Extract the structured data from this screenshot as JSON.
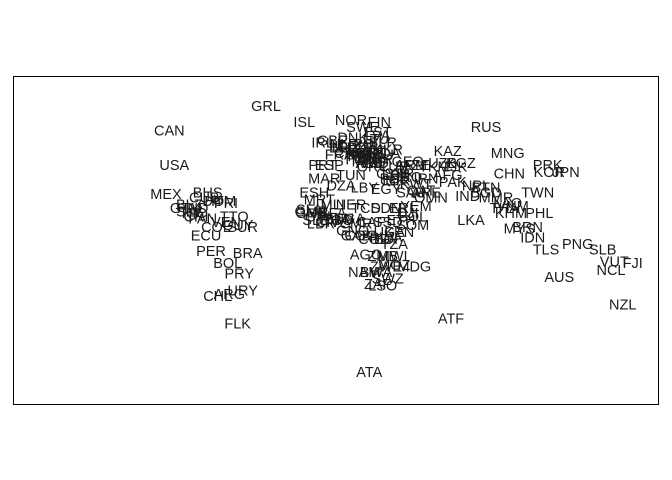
{
  "chart_data": {
    "type": "scatter",
    "title": "",
    "xlabel": "",
    "ylabel": "",
    "axes_visible": false,
    "grid": false,
    "legend": "none",
    "xlim": [
      -180,
      180
    ],
    "ylim": [
      -90,
      84
    ],
    "text_color": "#1a1a1a",
    "points": [
      {
        "label": "CAN",
        "x": -100,
        "y": 60
      },
      {
        "label": "USA",
        "x": -97,
        "y": 40
      },
      {
        "label": "MEX",
        "x": -102,
        "y": 23
      },
      {
        "label": "BHS",
        "x": -77,
        "y": 24
      },
      {
        "label": "CUB",
        "x": -79,
        "y": 21
      },
      {
        "label": "HTI",
        "x": -72,
        "y": 19
      },
      {
        "label": "DOM",
        "x": -70,
        "y": 19
      },
      {
        "label": "PRI",
        "x": -66,
        "y": 18
      },
      {
        "label": "GTM",
        "x": -90,
        "y": 15
      },
      {
        "label": "BLZ",
        "x": -88,
        "y": 17
      },
      {
        "label": "HND",
        "x": -86,
        "y": 15
      },
      {
        "label": "SLV",
        "x": -88,
        "y": 13
      },
      {
        "label": "NIC",
        "x": -85,
        "y": 12
      },
      {
        "label": "CRI",
        "x": -84,
        "y": 10
      },
      {
        "label": "PAN",
        "x": -80,
        "y": 9
      },
      {
        "label": "TTO",
        "x": -61,
        "y": 10
      },
      {
        "label": "VEN",
        "x": -66,
        "y": 7
      },
      {
        "label": "GUY",
        "x": -59,
        "y": 5
      },
      {
        "label": "SUR",
        "x": -56,
        "y": 4
      },
      {
        "label": "COL",
        "x": -72,
        "y": 4
      },
      {
        "label": "ECU",
        "x": -78,
        "y": -1
      },
      {
        "label": "PER",
        "x": -75,
        "y": -10
      },
      {
        "label": "BRA",
        "x": -53,
        "y": -11
      },
      {
        "label": "BOL",
        "x": -65,
        "y": -17
      },
      {
        "label": "PRY",
        "x": -58,
        "y": -23
      },
      {
        "label": "URY",
        "x": -56,
        "y": -33
      },
      {
        "label": "ARG",
        "x": -64,
        "y": -35
      },
      {
        "label": "CHL",
        "x": -71,
        "y": -36
      },
      {
        "label": "FLK",
        "x": -59,
        "y": -52
      },
      {
        "label": "GRL",
        "x": -42,
        "y": 74
      },
      {
        "label": "ISL",
        "x": -19,
        "y": 65
      },
      {
        "label": "NOR",
        "x": 9,
        "y": 66
      },
      {
        "label": "FIN",
        "x": 26,
        "y": 65
      },
      {
        "label": "SWE",
        "x": 16,
        "y": 62
      },
      {
        "label": "EST",
        "x": 25,
        "y": 59
      },
      {
        "label": "LVA",
        "x": 25,
        "y": 57
      },
      {
        "label": "LTU",
        "x": 24,
        "y": 55
      },
      {
        "label": "DNK",
        "x": 10,
        "y": 56
      },
      {
        "label": "IRL",
        "x": -8,
        "y": 53
      },
      {
        "label": "GBR",
        "x": -2,
        "y": 54
      },
      {
        "label": "NLD",
        "x": 5,
        "y": 52
      },
      {
        "label": "BEL",
        "x": 4,
        "y": 50
      },
      {
        "label": "LUX",
        "x": 6,
        "y": 50
      },
      {
        "label": "DEU",
        "x": 10,
        "y": 51
      },
      {
        "label": "POL",
        "x": 19,
        "y": 52
      },
      {
        "label": "BLR",
        "x": 28,
        "y": 53
      },
      {
        "label": "UKR",
        "x": 31,
        "y": 49
      },
      {
        "label": "CZE",
        "x": 15,
        "y": 50
      },
      {
        "label": "AUT",
        "x": 14,
        "y": 47
      },
      {
        "label": "CHE",
        "x": 8,
        "y": 47
      },
      {
        "label": "FRA",
        "x": 2,
        "y": 46
      },
      {
        "label": "SVK",
        "x": 19,
        "y": 49
      },
      {
        "label": "HUN",
        "x": 19,
        "y": 47
      },
      {
        "label": "SVN",
        "x": 15,
        "y": 46
      },
      {
        "label": "HRV",
        "x": 16,
        "y": 45
      },
      {
        "label": "BIH",
        "x": 18,
        "y": 44
      },
      {
        "label": "SRB",
        "x": 21,
        "y": 44
      },
      {
        "label": "ROU",
        "x": 25,
        "y": 46
      },
      {
        "label": "MDA",
        "x": 29,
        "y": 47
      },
      {
        "label": "BGR",
        "x": 25,
        "y": 43
      },
      {
        "label": "MKD",
        "x": 22,
        "y": 41
      },
      {
        "label": "ALB",
        "x": 20,
        "y": 41
      },
      {
        "label": "MNE",
        "x": 19,
        "y": 42
      },
      {
        "label": "GRC",
        "x": 22,
        "y": 39
      },
      {
        "label": "ITA",
        "x": 12,
        "y": 43
      },
      {
        "label": "ESP",
        "x": -4,
        "y": 40
      },
      {
        "label": "PRT",
        "x": -8,
        "y": 40
      },
      {
        "label": "TUR",
        "x": 35,
        "y": 39
      },
      {
        "label": "CYP",
        "x": 33,
        "y": 35
      },
      {
        "label": "GEO",
        "x": 43,
        "y": 42
      },
      {
        "label": "ARM",
        "x": 45,
        "y": 40
      },
      {
        "label": "AZE",
        "x": 48,
        "y": 40
      },
      {
        "label": "KAZ",
        "x": 67,
        "y": 48
      },
      {
        "label": "UZB",
        "x": 64,
        "y": 41
      },
      {
        "label": "TKM",
        "x": 59,
        "y": 39
      },
      {
        "label": "KGZ",
        "x": 75,
        "y": 41
      },
      {
        "label": "TJK",
        "x": 71,
        "y": 39
      },
      {
        "label": "RUS",
        "x": 90,
        "y": 62
      },
      {
        "label": "MNG",
        "x": 103,
        "y": 47
      },
      {
        "label": "CHN",
        "x": 104,
        "y": 35
      },
      {
        "label": "PRK",
        "x": 127,
        "y": 40
      },
      {
        "label": "KOR",
        "x": 128,
        "y": 36
      },
      {
        "label": "JPN",
        "x": 138,
        "y": 36
      },
      {
        "label": "TWN",
        "x": 121,
        "y": 24
      },
      {
        "label": "SYR",
        "x": 38,
        "y": 35
      },
      {
        "label": "LBN",
        "x": 36,
        "y": 34
      },
      {
        "label": "ISR",
        "x": 35,
        "y": 31
      },
      {
        "label": "PSE",
        "x": 35,
        "y": 32
      },
      {
        "label": "JOR",
        "x": 36,
        "y": 31
      },
      {
        "label": "IRQ",
        "x": 44,
        "y": 33
      },
      {
        "label": "IRN",
        "x": 54,
        "y": 32
      },
      {
        "label": "AFG",
        "x": 67,
        "y": 34
      },
      {
        "label": "PAK",
        "x": 70,
        "y": 30
      },
      {
        "label": "KWT",
        "x": 48,
        "y": 29
      },
      {
        "label": "QAT",
        "x": 51,
        "y": 25
      },
      {
        "label": "ARE",
        "x": 54,
        "y": 24
      },
      {
        "label": "SAU",
        "x": 45,
        "y": 24
      },
      {
        "label": "OMN",
        "x": 57,
        "y": 21
      },
      {
        "label": "YEM",
        "x": 48,
        "y": 16
      },
      {
        "label": "IND",
        "x": 79,
        "y": 22
      },
      {
        "label": "NPL",
        "x": 84,
        "y": 28
      },
      {
        "label": "BTN",
        "x": 90,
        "y": 27
      },
      {
        "label": "BGD",
        "x": 90,
        "y": 24
      },
      {
        "label": "MMR",
        "x": 96,
        "y": 21
      },
      {
        "label": "THA",
        "x": 101,
        "y": 15
      },
      {
        "label": "LAO",
        "x": 103,
        "y": 18
      },
      {
        "label": "VNM",
        "x": 106,
        "y": 16
      },
      {
        "label": "KHM",
        "x": 105,
        "y": 12
      },
      {
        "label": "LKA",
        "x": 81,
        "y": 8
      },
      {
        "label": "PHL",
        "x": 122,
        "y": 12
      },
      {
        "label": "MYS",
        "x": 110,
        "y": 3
      },
      {
        "label": "BRN",
        "x": 115,
        "y": 4
      },
      {
        "label": "IDN",
        "x": 118,
        "y": -2
      },
      {
        "label": "TLS",
        "x": 126,
        "y": -9
      },
      {
        "label": "PNG",
        "x": 145,
        "y": -6
      },
      {
        "label": "SLB",
        "x": 160,
        "y": -9
      },
      {
        "label": "VUT",
        "x": 167,
        "y": -16
      },
      {
        "label": "FJI",
        "x": 178,
        "y": -17
      },
      {
        "label": "NCL",
        "x": 165,
        "y": -21
      },
      {
        "label": "AUS",
        "x": 134,
        "y": -25
      },
      {
        "label": "NZL",
        "x": 172,
        "y": -41
      },
      {
        "label": "MAR",
        "x": -7,
        "y": 32
      },
      {
        "label": "DZA",
        "x": 3,
        "y": 28
      },
      {
        "label": "TUN",
        "x": 9,
        "y": 34
      },
      {
        "label": "LBY",
        "x": 17,
        "y": 27
      },
      {
        "label": "EGY",
        "x": 30,
        "y": 26
      },
      {
        "label": "ESH",
        "x": -13,
        "y": 24
      },
      {
        "label": "MRT",
        "x": -10,
        "y": 20
      },
      {
        "label": "MLI",
        "x": -2,
        "y": 17
      },
      {
        "label": "NER",
        "x": 9,
        "y": 17
      },
      {
        "label": "TCD",
        "x": 18,
        "y": 15
      },
      {
        "label": "SDN",
        "x": 30,
        "y": 15
      },
      {
        "label": "ERI",
        "x": 39,
        "y": 15
      },
      {
        "label": "SEN",
        "x": -15,
        "y": 14
      },
      {
        "label": "GMB",
        "x": -15,
        "y": 13
      },
      {
        "label": "GNB",
        "x": -15,
        "y": 12
      },
      {
        "label": "GIN",
        "x": -11,
        "y": 10
      },
      {
        "label": "SLE",
        "x": -12,
        "y": 8
      },
      {
        "label": "LBR",
        "x": -9,
        "y": 6
      },
      {
        "label": "CIV",
        "x": -5,
        "y": 7
      },
      {
        "label": "BFA",
        "x": -2,
        "y": 12
      },
      {
        "label": "GHA",
        "x": -1,
        "y": 8
      },
      {
        "label": "TGO",
        "x": 1,
        "y": 8
      },
      {
        "label": "BEN",
        "x": 2,
        "y": 9
      },
      {
        "label": "NGA",
        "x": 8,
        "y": 9
      },
      {
        "label": "CMR",
        "x": 12,
        "y": 6
      },
      {
        "label": "CAF",
        "x": 21,
        "y": 7
      },
      {
        "label": "SSD",
        "x": 31,
        "y": 7
      },
      {
        "label": "ETH",
        "x": 39,
        "y": 8
      },
      {
        "label": "DJI",
        "x": 43,
        "y": 12
      },
      {
        "label": "SOM",
        "x": 46,
        "y": 5
      },
      {
        "label": "SOL",
        "x": 46,
        "y": 10
      },
      {
        "label": "GNQ",
        "x": 10,
        "y": 2
      },
      {
        "label": "GAB",
        "x": 12,
        "y": -1
      },
      {
        "label": "COG",
        "x": 15,
        "y": -1
      },
      {
        "label": "COD",
        "x": 23,
        "y": -3
      },
      {
        "label": "UGA",
        "x": 32,
        "y": 1
      },
      {
        "label": "KEN",
        "x": 38,
        "y": 1
      },
      {
        "label": "RWA",
        "x": 30,
        "y": -2
      },
      {
        "label": "BDI",
        "x": 30,
        "y": -3
      },
      {
        "label": "TZA",
        "x": 35,
        "y": -6
      },
      {
        "label": "AGO",
        "x": 18,
        "y": -12
      },
      {
        "label": "ZMB",
        "x": 28,
        "y": -13
      },
      {
        "label": "MWI",
        "x": 34,
        "y": -13
      },
      {
        "label": "MOZ",
        "x": 35,
        "y": -18
      },
      {
        "label": "MDG",
        "x": 47,
        "y": -19
      },
      {
        "label": "ZWE",
        "x": 30,
        "y": -19
      },
      {
        "label": "NAM",
        "x": 17,
        "y": -22
      },
      {
        "label": "BWA",
        "x": 24,
        "y": -22
      },
      {
        "label": "ZAF",
        "x": 25,
        "y": -29
      },
      {
        "label": "SWZ",
        "x": 31,
        "y": -26
      },
      {
        "label": "LSO",
        "x": 28,
        "y": -30
      },
      {
        "label": "ATF",
        "x": 69,
        "y": -49
      },
      {
        "label": "ATA",
        "x": 20,
        "y": -80
      }
    ]
  }
}
